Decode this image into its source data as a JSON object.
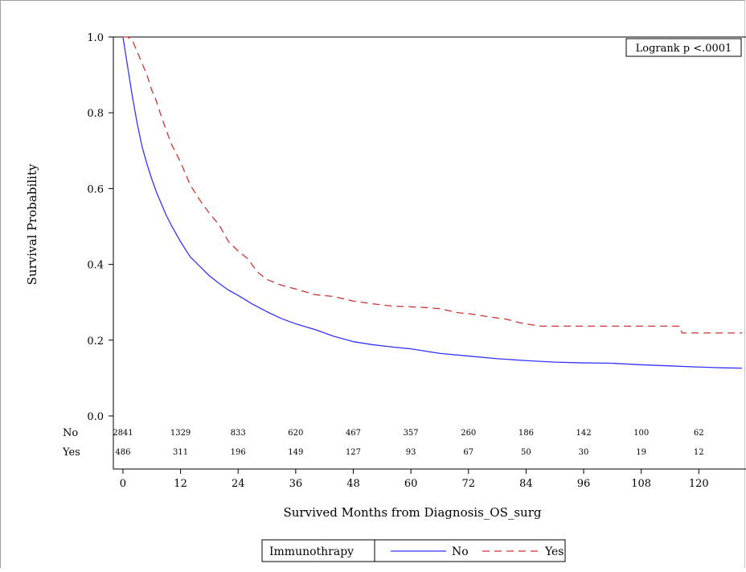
{
  "chart_data": {
    "type": "line",
    "subtype": "kaplan-meier",
    "xlabel": "Survived Months from Diagnosis_OS_surg",
    "ylabel": "Survival Probability",
    "xlim": [
      -2,
      130
    ],
    "ylim": [
      0,
      1.0
    ],
    "x_ticks": [
      0,
      12,
      24,
      36,
      48,
      60,
      72,
      84,
      96,
      108,
      120
    ],
    "y_ticks": [
      0.0,
      0.2,
      0.4,
      0.6,
      0.8,
      1.0
    ],
    "annotation": "Logrank p <.0001",
    "legend": {
      "title": "Immunothrapy",
      "position": "bottom",
      "entries": [
        "No",
        "Yes"
      ]
    },
    "series": [
      {
        "name": "No",
        "color": "#3333ff",
        "dash": "solid",
        "points": [
          [
            0,
            1.0
          ],
          [
            1,
            0.92
          ],
          [
            2,
            0.84
          ],
          [
            3,
            0.77
          ],
          [
            4,
            0.71
          ],
          [
            5,
            0.665
          ],
          [
            6,
            0.625
          ],
          [
            7,
            0.59
          ],
          [
            8,
            0.56
          ],
          [
            9,
            0.53
          ],
          [
            10,
            0.505
          ],
          [
            12,
            0.46
          ],
          [
            14,
            0.42
          ],
          [
            16,
            0.395
          ],
          [
            18,
            0.37
          ],
          [
            20,
            0.35
          ],
          [
            22,
            0.332
          ],
          [
            24,
            0.318
          ],
          [
            27,
            0.295
          ],
          [
            30,
            0.275
          ],
          [
            33,
            0.257
          ],
          [
            36,
            0.243
          ],
          [
            40,
            0.228
          ],
          [
            44,
            0.21
          ],
          [
            48,
            0.196
          ],
          [
            52,
            0.188
          ],
          [
            56,
            0.182
          ],
          [
            60,
            0.177
          ],
          [
            66,
            0.165
          ],
          [
            72,
            0.158
          ],
          [
            78,
            0.151
          ],
          [
            84,
            0.146
          ],
          [
            90,
            0.142
          ],
          [
            96,
            0.14
          ],
          [
            102,
            0.139
          ],
          [
            108,
            0.135
          ],
          [
            114,
            0.132
          ],
          [
            120,
            0.129
          ],
          [
            125,
            0.127
          ],
          [
            129,
            0.126
          ]
        ]
      },
      {
        "name": "Yes",
        "color": "#cc3333",
        "dash": "dashed",
        "points": [
          [
            0,
            1.0
          ],
          [
            1,
            1.0
          ],
          [
            2,
            0.99
          ],
          [
            3,
            0.96
          ],
          [
            4,
            0.93
          ],
          [
            5,
            0.9
          ],
          [
            6,
            0.86
          ],
          [
            7,
            0.83
          ],
          [
            8,
            0.79
          ],
          [
            10,
            0.72
          ],
          [
            12,
            0.67
          ],
          [
            14,
            0.61
          ],
          [
            16,
            0.57
          ],
          [
            18,
            0.535
          ],
          [
            20,
            0.505
          ],
          [
            22,
            0.46
          ],
          [
            24,
            0.435
          ],
          [
            26,
            0.415
          ],
          [
            28,
            0.38
          ],
          [
            30,
            0.36
          ],
          [
            33,
            0.345
          ],
          [
            36,
            0.335
          ],
          [
            40,
            0.32
          ],
          [
            44,
            0.315
          ],
          [
            48,
            0.303
          ],
          [
            52,
            0.296
          ],
          [
            56,
            0.29
          ],
          [
            60,
            0.288
          ],
          [
            63,
            0.286
          ],
          [
            66,
            0.283
          ],
          [
            70,
            0.272
          ],
          [
            72,
            0.27
          ],
          [
            76,
            0.262
          ],
          [
            80,
            0.255
          ],
          [
            83,
            0.245
          ],
          [
            87,
            0.237
          ],
          [
            96,
            0.237
          ],
          [
            108,
            0.237
          ],
          [
            116,
            0.237
          ],
          [
            116.5,
            0.219
          ],
          [
            129,
            0.219
          ]
        ]
      }
    ],
    "at_risk": {
      "times": [
        0,
        12,
        24,
        36,
        48,
        60,
        72,
        84,
        96,
        108,
        120
      ],
      "rows": [
        {
          "label": "No",
          "values": [
            2841,
            1329,
            833,
            620,
            467,
            357,
            260,
            186,
            142,
            100,
            62
          ]
        },
        {
          "label": "Yes",
          "values": [
            486,
            311,
            196,
            149,
            127,
            93,
            67,
            50,
            30,
            19,
            12
          ]
        }
      ]
    }
  }
}
